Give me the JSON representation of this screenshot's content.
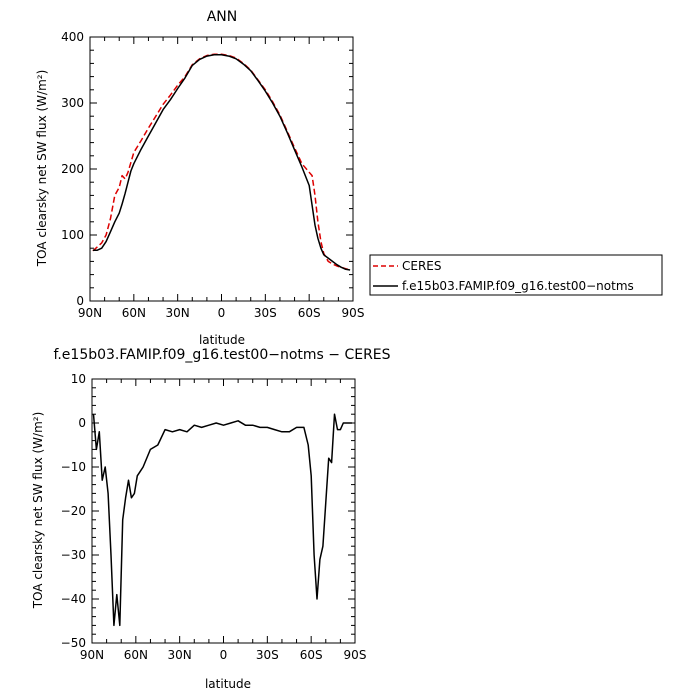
{
  "chart_data": [
    {
      "type": "line",
      "title": "ANN",
      "xlabel": "latitude",
      "ylabel": "TOA clearsky net SW flux (W/m²)",
      "xlim": [
        90,
        -90
      ],
      "ylim": [
        0,
        400
      ],
      "x_ticks": [
        90,
        60,
        30,
        0,
        -30,
        -60,
        -90
      ],
      "x_tick_labels": [
        "90N",
        "60N",
        "30N",
        "0",
        "30S",
        "60S",
        "90S"
      ],
      "y_ticks": [
        0,
        100,
        200,
        300,
        400
      ],
      "y_tick_labels": [
        "0",
        "100",
        "200",
        "300",
        "400"
      ],
      "legend": "right",
      "series": [
        {
          "name": "CERES",
          "color": "#dd0000",
          "dash": "dashed",
          "x": [
            88,
            85,
            82,
            79,
            76,
            73,
            70,
            68,
            66,
            64,
            62,
            60,
            55,
            50,
            45,
            40,
            35,
            30,
            25,
            20,
            15,
            10,
            5,
            0,
            -5,
            -10,
            -15,
            -20,
            -25,
            -30,
            -35,
            -40,
            -45,
            -50,
            -55,
            -60,
            -62,
            -64,
            -66,
            -68,
            -70,
            -73,
            -76,
            -79,
            -82,
            -85,
            -88
          ],
          "y": [
            76,
            82,
            88,
            100,
            125,
            160,
            172,
            190,
            185,
            195,
            210,
            225,
            243,
            262,
            280,
            298,
            312,
            327,
            340,
            358,
            367,
            372,
            374,
            374,
            372,
            368,
            360,
            350,
            335,
            320,
            302,
            282,
            257,
            232,
            208,
            195,
            190,
            160,
            120,
            90,
            72,
            60,
            56,
            53,
            51,
            49,
            47
          ]
        },
        {
          "name": "f.e15b03.FAMIP.f09_g16.test00−notms",
          "color": "#000000",
          "dash": "solid",
          "x": [
            88,
            85,
            82,
            79,
            76,
            73,
            70,
            68,
            66,
            64,
            62,
            60,
            55,
            50,
            45,
            40,
            35,
            30,
            25,
            20,
            15,
            10,
            5,
            0,
            -5,
            -10,
            -15,
            -20,
            -25,
            -30,
            -35,
            -40,
            -45,
            -50,
            -55,
            -60,
            -62,
            -64,
            -66,
            -68,
            -70,
            -73,
            -76,
            -79,
            -82,
            -85,
            -88
          ],
          "y": [
            77,
            77,
            80,
            90,
            105,
            120,
            133,
            147,
            163,
            180,
            197,
            208,
            230,
            250,
            270,
            290,
            305,
            322,
            338,
            357,
            366,
            371,
            373,
            373,
            371,
            367,
            359,
            349,
            334,
            318,
            300,
            280,
            255,
            229,
            203,
            175,
            145,
            115,
            95,
            80,
            70,
            65,
            60,
            55,
            51,
            48,
            47
          ]
        }
      ]
    },
    {
      "type": "line",
      "title": "f.e15b03.FAMIP.f09_g16.test00−notms − CERES",
      "xlabel": "latitude",
      "ylabel": "TOA clearsky net SW flux (W/m²)",
      "xlim": [
        90,
        -90
      ],
      "ylim": [
        -50,
        10
      ],
      "x_ticks": [
        90,
        60,
        30,
        0,
        -30,
        -60,
        -90
      ],
      "x_tick_labels": [
        "90N",
        "60N",
        "30N",
        "0",
        "30S",
        "60S",
        "90S"
      ],
      "y_ticks": [
        -50,
        -40,
        -30,
        -20,
        -10,
        0,
        10
      ],
      "y_tick_labels": [
        "−50",
        "−40",
        "−30",
        "−20",
        "−10",
        "0",
        "10"
      ],
      "series": [
        {
          "color": "#000000",
          "dash": "solid",
          "x": [
            89,
            87,
            85,
            83,
            81,
            79,
            77,
            75,
            73,
            71,
            69,
            67,
            65,
            63,
            61,
            59,
            57,
            55,
            50,
            45,
            40,
            35,
            30,
            25,
            20,
            15,
            10,
            5,
            0,
            -5,
            -10,
            -15,
            -20,
            -25,
            -30,
            -35,
            -40,
            -45,
            -50,
            -55,
            -58,
            -60,
            -62,
            -64,
            -66,
            -68,
            -70,
            -72,
            -74,
            -76,
            -78,
            -80,
            -82,
            -84,
            -86,
            -88
          ],
          "y": [
            2,
            -6,
            -2,
            -13,
            -10,
            -16,
            -30,
            -46,
            -39,
            -46,
            -22,
            -17,
            -13,
            -17,
            -16,
            -12,
            -11,
            -10,
            -6,
            -5,
            -1.5,
            -2,
            -1.5,
            -2,
            -0.5,
            -1,
            -0.5,
            0,
            -0.5,
            0,
            0.5,
            -0.5,
            -0.5,
            -1,
            -1,
            -1.5,
            -2,
            -2,
            -1,
            -1,
            -5,
            -12,
            -30,
            -40,
            -31,
            -28,
            -18,
            -8,
            -9,
            2,
            -1.5,
            -1.5,
            0,
            0,
            0,
            0
          ]
        }
      ]
    }
  ]
}
